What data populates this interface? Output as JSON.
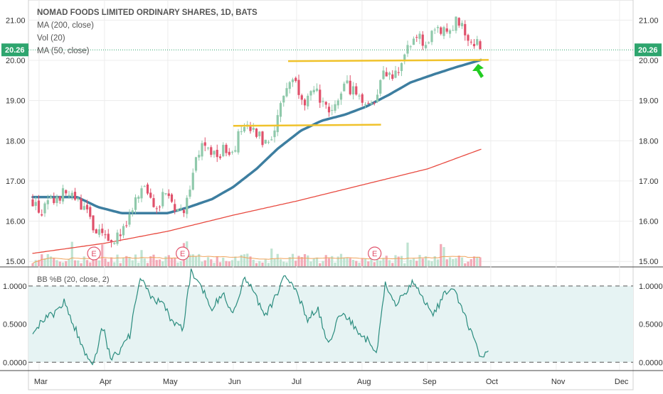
{
  "header": {
    "title": "NOMAD FOODS LIMITED ORDINARY SHARES, 1D, BATS",
    "indicators": [
      "MA (200, close)",
      "Vol (20)",
      "MA (50, close)"
    ],
    "oscillator_label": "BB %B (20, close, 2)"
  },
  "colors": {
    "up": "#8fc9ab",
    "down": "#e0516b",
    "ma50": "#3d7ea0",
    "ma200": "#e8493f",
    "support": "#f0c22b",
    "last_price": "#2ea56e",
    "arrow": "#22cc22",
    "bb": "#2a8c7e",
    "bb_band": "#e6f3f3",
    "vol_ma": "#f0a35a"
  },
  "chart_data": [
    {
      "type": "candlestick",
      "name": "price",
      "x_ticks": [
        "Mar",
        "Apr",
        "May",
        "Jun",
        "Jul",
        "Aug",
        "Sep",
        "Oct",
        "Nov",
        "Dec"
      ],
      "y_ticks": [
        "15.00",
        "16.00",
        "17.00",
        "18.00",
        "19.00",
        "20.00",
        "21.00"
      ],
      "ylim": [
        14.88,
        21.5
      ],
      "last_price": "20.26",
      "earnings_markers": [
        "E",
        "E",
        "E"
      ],
      "earnings_dates": [
        "2018-03-27",
        "2018-05-08",
        "2018-08-07"
      ],
      "close_points": [
        [
          "2018-02-26",
          16.5
        ],
        [
          "2018-03-02",
          16.2
        ],
        [
          "2018-03-07",
          16.5
        ],
        [
          "2018-03-13",
          16.7
        ],
        [
          "2018-03-19",
          16.5
        ],
        [
          "2018-03-23",
          16.3
        ],
        [
          "2018-03-27",
          15.8
        ],
        [
          "2018-04-02",
          15.5
        ],
        [
          "2018-04-06",
          15.6
        ],
        [
          "2018-04-11",
          15.8
        ],
        [
          "2018-04-16",
          16.5
        ],
        [
          "2018-04-20",
          16.8
        ],
        [
          "2018-04-25",
          16.4
        ],
        [
          "2018-05-01",
          16.7
        ],
        [
          "2018-05-04",
          16.4
        ],
        [
          "2018-05-08",
          16.2
        ],
        [
          "2018-05-10",
          16.6
        ],
        [
          "2018-05-14",
          17.5
        ],
        [
          "2018-05-18",
          17.9
        ],
        [
          "2018-05-23",
          17.6
        ],
        [
          "2018-05-29",
          17.8
        ],
        [
          "2018-06-01",
          17.8
        ],
        [
          "2018-06-05",
          18.3
        ],
        [
          "2018-06-11",
          18.2
        ],
        [
          "2018-06-15",
          18.0
        ],
        [
          "2018-06-20",
          18.2
        ],
        [
          "2018-06-25",
          19.2
        ],
        [
          "2018-06-29",
          19.6
        ],
        [
          "2018-07-05",
          19.0
        ],
        [
          "2018-07-11",
          19.2
        ],
        [
          "2018-07-17",
          18.5
        ],
        [
          "2018-07-23",
          19.4
        ],
        [
          "2018-07-27",
          19.3
        ],
        [
          "2018-08-02",
          19.0
        ],
        [
          "2018-08-07",
          18.9
        ],
        [
          "2018-08-10",
          19.7
        ],
        [
          "2018-08-16",
          19.6
        ],
        [
          "2018-08-22",
          20.2
        ],
        [
          "2018-08-27",
          20.6
        ],
        [
          "2018-08-31",
          20.4
        ],
        [
          "2018-09-05",
          20.7
        ],
        [
          "2018-09-11",
          20.7
        ],
        [
          "2018-09-14",
          21.0
        ],
        [
          "2018-09-20",
          20.6
        ],
        [
          "2018-09-25",
          20.4
        ],
        [
          "2018-09-27",
          20.26
        ]
      ],
      "ma50_points": [
        [
          "2018-02-26",
          16.6
        ],
        [
          "2018-03-08",
          16.6
        ],
        [
          "2018-03-19",
          16.6
        ],
        [
          "2018-03-29",
          16.35
        ],
        [
          "2018-04-09",
          16.2
        ],
        [
          "2018-04-20",
          16.2
        ],
        [
          "2018-05-01",
          16.2
        ],
        [
          "2018-05-11",
          16.35
        ],
        [
          "2018-05-22",
          16.55
        ],
        [
          "2018-06-01",
          16.85
        ],
        [
          "2018-06-12",
          17.3
        ],
        [
          "2018-06-22",
          17.8
        ],
        [
          "2018-07-03",
          18.25
        ],
        [
          "2018-07-13",
          18.5
        ],
        [
          "2018-07-24",
          18.65
        ],
        [
          "2018-08-03",
          18.85
        ],
        [
          "2018-08-14",
          19.15
        ],
        [
          "2018-08-24",
          19.45
        ],
        [
          "2018-09-04",
          19.65
        ],
        [
          "2018-09-14",
          19.82
        ],
        [
          "2018-09-27",
          20.02
        ]
      ],
      "ma200_points": [
        [
          "2018-02-26",
          15.2
        ],
        [
          "2018-04-01",
          15.45
        ],
        [
          "2018-05-01",
          15.75
        ],
        [
          "2018-06-01",
          16.15
        ],
        [
          "2018-07-01",
          16.5
        ],
        [
          "2018-08-01",
          16.9
        ],
        [
          "2018-09-01",
          17.3
        ],
        [
          "2018-09-27",
          17.8
        ]
      ],
      "support_lines": [
        {
          "from": [
            "2018-06-01",
            18.37
          ],
          "to": [
            "2018-08-10",
            18.4
          ]
        },
        {
          "from": [
            "2018-06-27",
            19.98
          ],
          "to": [
            "2018-09-30",
            20.01
          ]
        }
      ],
      "volume": "Vol (20)"
    },
    {
      "type": "line",
      "name": "BB %B (20, close, 2)",
      "y_ticks": [
        "0.0000",
        "0.5000",
        "1.0000"
      ],
      "ylim": [
        -0.1,
        1.25
      ],
      "bands": [
        0,
        1
      ],
      "points": [
        [
          "2018-02-26",
          0.42
        ],
        [
          "2018-03-03",
          0.55
        ],
        [
          "2018-03-08",
          0.63
        ],
        [
          "2018-03-13",
          0.8
        ],
        [
          "2018-03-18",
          0.45
        ],
        [
          "2018-03-23",
          0.1
        ],
        [
          "2018-03-27",
          0.0
        ],
        [
          "2018-03-31",
          0.48
        ],
        [
          "2018-04-04",
          0.05
        ],
        [
          "2018-04-09",
          0.18
        ],
        [
          "2018-04-13",
          0.35
        ],
        [
          "2018-04-18",
          1.12
        ],
        [
          "2018-04-23",
          0.85
        ],
        [
          "2018-04-28",
          0.78
        ],
        [
          "2018-05-03",
          0.55
        ],
        [
          "2018-05-08",
          0.42
        ],
        [
          "2018-05-12",
          1.2
        ],
        [
          "2018-05-17",
          0.98
        ],
        [
          "2018-05-22",
          0.72
        ],
        [
          "2018-05-27",
          0.9
        ],
        [
          "2018-06-01",
          0.62
        ],
        [
          "2018-06-06",
          1.1
        ],
        [
          "2018-06-11",
          0.92
        ],
        [
          "2018-06-16",
          0.6
        ],
        [
          "2018-06-21",
          0.85
        ],
        [
          "2018-06-26",
          1.15
        ],
        [
          "2018-07-01",
          0.95
        ],
        [
          "2018-07-06",
          0.55
        ],
        [
          "2018-07-11",
          0.7
        ],
        [
          "2018-07-16",
          0.22
        ],
        [
          "2018-07-21",
          0.63
        ],
        [
          "2018-07-26",
          0.55
        ],
        [
          "2018-07-31",
          0.38
        ],
        [
          "2018-08-04",
          0.28
        ],
        [
          "2018-08-08",
          0.1
        ],
        [
          "2018-08-12",
          1.05
        ],
        [
          "2018-08-16",
          0.75
        ],
        [
          "2018-08-20",
          0.85
        ],
        [
          "2018-08-25",
          1.08
        ],
        [
          "2018-08-30",
          0.82
        ],
        [
          "2018-09-04",
          0.62
        ],
        [
          "2018-09-09",
          0.9
        ],
        [
          "2018-09-14",
          0.93
        ],
        [
          "2018-09-19",
          0.6
        ],
        [
          "2018-09-23",
          0.28
        ],
        [
          "2018-09-27",
          0.02
        ],
        [
          "2018-09-30",
          0.2
        ]
      ]
    }
  ]
}
